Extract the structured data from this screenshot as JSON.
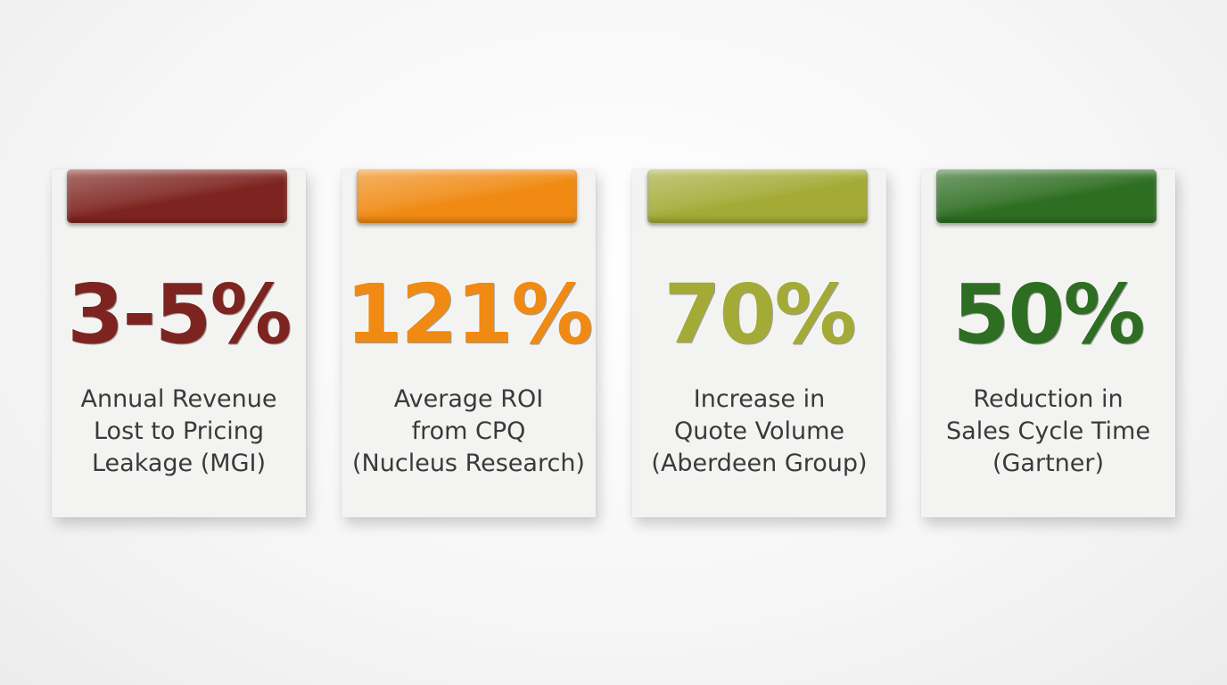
{
  "cards": [
    {
      "value": "3-5%",
      "color": "#7e2420",
      "label_lines": [
        "Annual Revenue",
        "Lost to Pricing",
        "Leakage (MGI)"
      ]
    },
    {
      "value": "121%",
      "color": "#f08a12",
      "label_lines": [
        "Average ROI",
        "from CPQ",
        "(Nucleus Research)"
      ]
    },
    {
      "value": "70%",
      "color": "#a3ab36",
      "label_lines": [
        "Increase in",
        "Quote Volume",
        "(Aberdeen Group)"
      ]
    },
    {
      "value": "50%",
      "color": "#2e6e22",
      "label_lines": [
        "Reduction in",
        "Sales Cycle Time",
        "(Gartner)"
      ]
    }
  ]
}
